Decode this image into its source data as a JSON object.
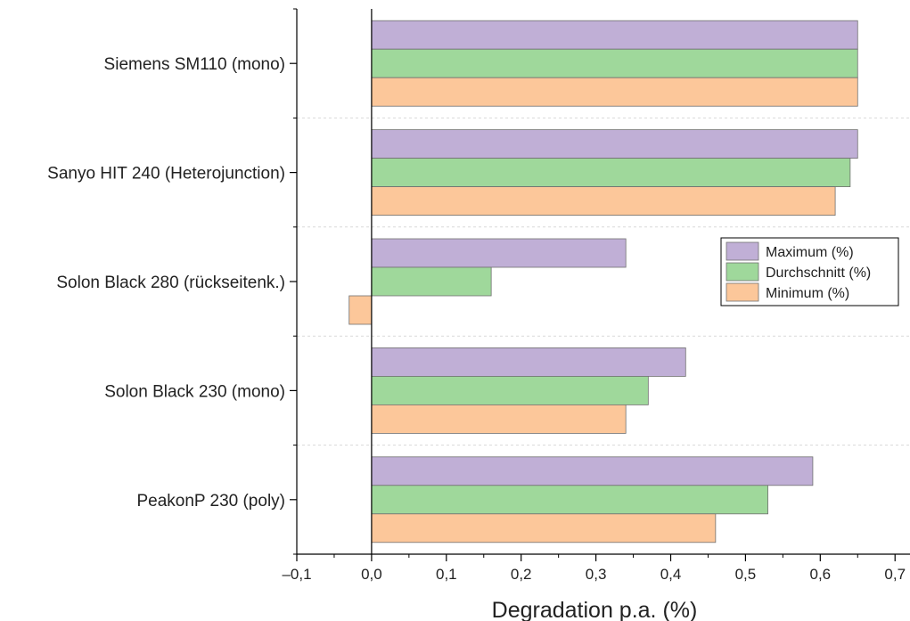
{
  "chart_data": {
    "type": "bar",
    "orientation": "horizontal",
    "categories": [
      "Siemens SM110 (mono)",
      "Sanyo HIT 240 (Heterojunction)",
      "Solon Black 280 (rückseitenk.)",
      "Solon Black 230 (mono)",
      "PeakonP 230 (poly)"
    ],
    "series": [
      {
        "name": "Maximum (%)",
        "color": "#c0afd6",
        "values": [
          0.65,
          0.65,
          0.34,
          0.42,
          0.59
        ]
      },
      {
        "name": "Durchschnitt (%)",
        "color": "#9fd89b",
        "values": [
          0.65,
          0.64,
          0.16,
          0.37,
          0.53
        ]
      },
      {
        "name": "Minimum (%)",
        "color": "#fcc79a",
        "values": [
          0.65,
          0.62,
          -0.03,
          0.34,
          0.46
        ]
      }
    ],
    "xlabel": "Degradation p.a. (%)",
    "ylabel": "",
    "xlim": [
      -0.1,
      0.72
    ],
    "xticks": [
      -0.1,
      0.0,
      0.1,
      0.2,
      0.3,
      0.4,
      0.5,
      0.6,
      0.7
    ],
    "xtick_labels": [
      "–0,1",
      "0,0",
      "0,1",
      "0,2",
      "0,3",
      "0,4",
      "0,5",
      "0,6",
      "0,7"
    ],
    "grid": "dashed horizontal separators between categories",
    "legend_position": "right"
  }
}
